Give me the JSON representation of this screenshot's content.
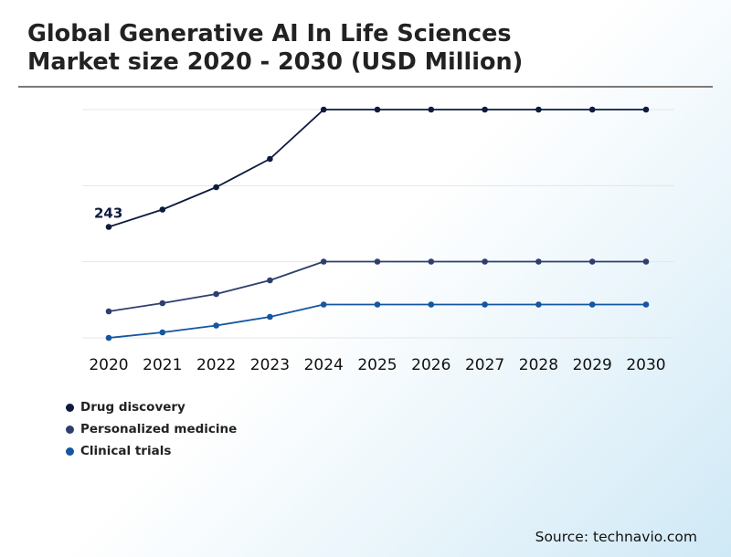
{
  "title_line1": "Global Generative AI In Life Sciences",
  "title_line2": "Market size 2020 - 2030 (USD Million)",
  "source": "Source: technavio.com",
  "chart_data": {
    "type": "line",
    "categories": [
      "2020",
      "2021",
      "2022",
      "2023",
      "2024",
      "2025",
      "2026",
      "2027",
      "2028",
      "2029",
      "2030"
    ],
    "ylim": [
      0,
      1000
    ],
    "grid": true,
    "legend_position": "bottom-left",
    "series": [
      {
        "name": "Drug discovery",
        "color": "#0d1b3e",
        "values": [
          243,
          281,
          330,
          392,
          500,
          500,
          500,
          500,
          500,
          500,
          500
        ]
      },
      {
        "name": "Personalized medicine",
        "color": "#2e3f6e",
        "values": [
          58,
          76,
          96,
          126,
          167,
          167,
          167,
          167,
          167,
          167,
          167
        ]
      },
      {
        "name": "Clinical trials",
        "color": "#1456a0",
        "values": [
          0,
          12,
          27,
          46,
          73,
          73,
          73,
          73,
          73,
          73,
          73
        ]
      }
    ],
    "annotations": [
      {
        "series": 0,
        "index": 0,
        "text": "243"
      }
    ]
  }
}
